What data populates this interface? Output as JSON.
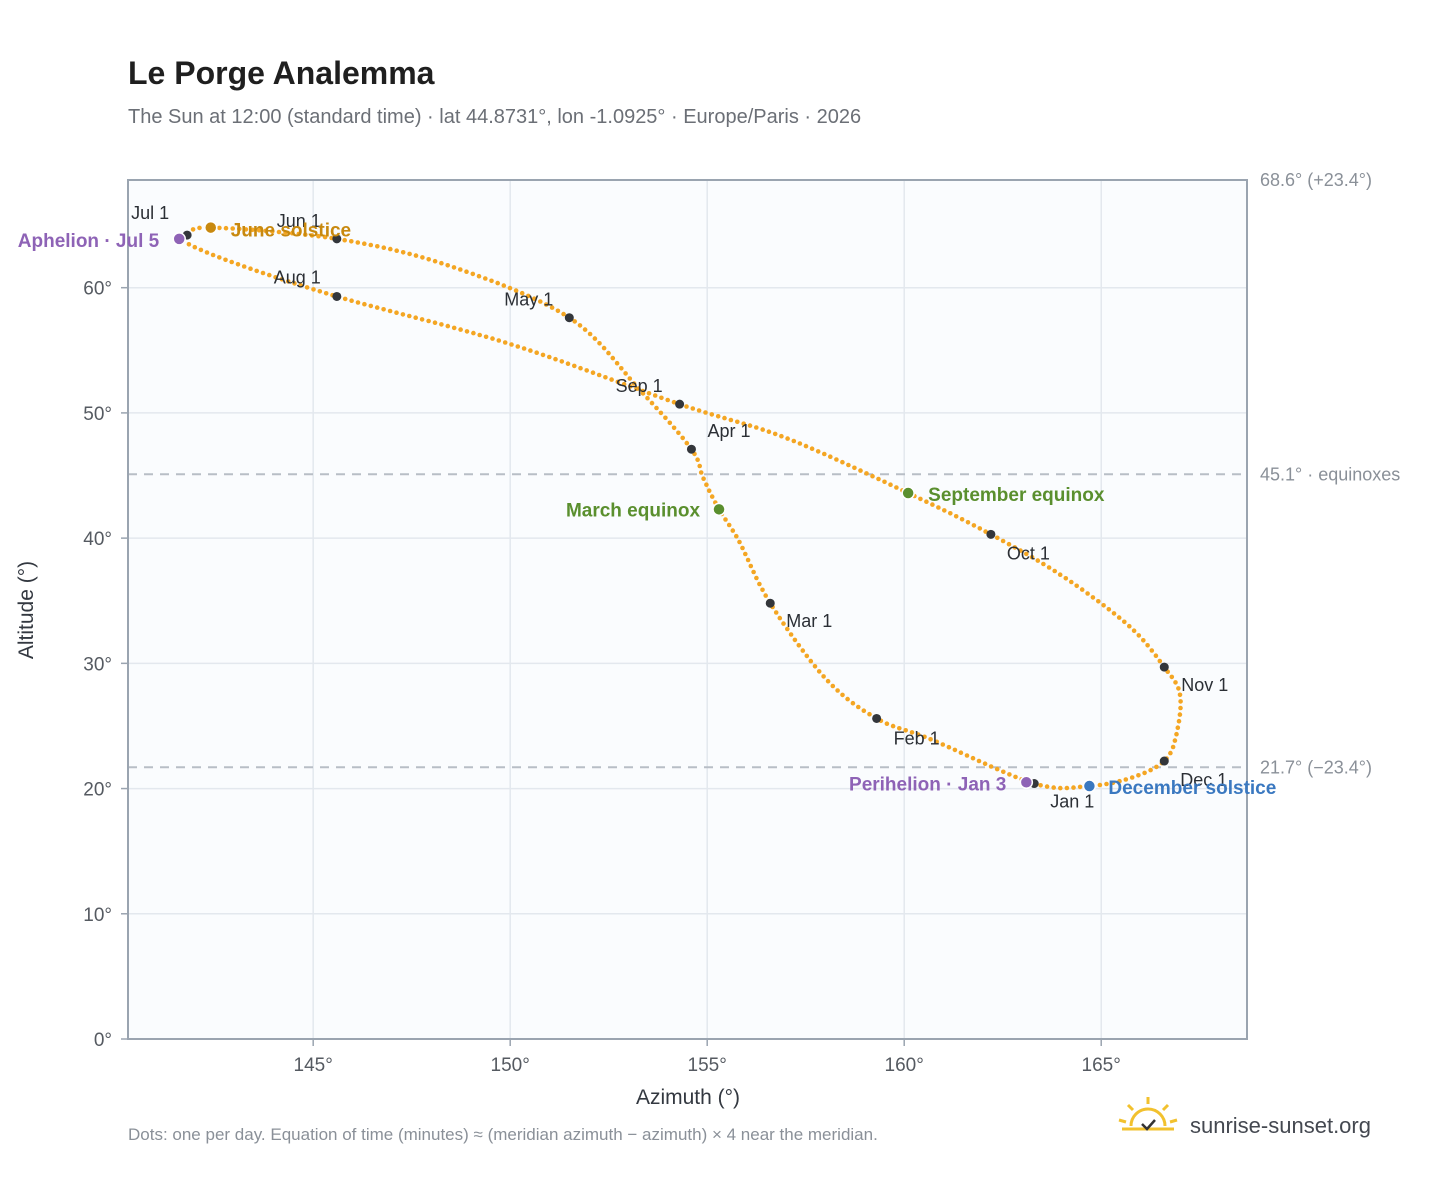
{
  "header": {
    "title": "Le Porge Analemma",
    "subtitle": "The Sun at 12:00 (standard time) · lat 44.8731°, lon -1.0925° · Europe/Paris · 2026"
  },
  "footer": {
    "note": "Dots: one per day. Equation of time (minutes) ≈ (meridian azimuth − azimuth) × 4 near the meridian.",
    "brand": "sunrise-sunset.org",
    "brand_icon": "sunrise-logo-icon"
  },
  "colors": {
    "curve": "#f4a623",
    "month_marker": "#33363b",
    "solstice_june": "#c8890f",
    "solstice_december": "#3a78c0",
    "equinox": "#5a8f2e",
    "apsis": "#8e63b6",
    "reference_line": "#b8bec6",
    "plot_background": "#fafcfe",
    "grid": "#e3e8ee",
    "frame": "#9aa4b0"
  },
  "chart_data": {
    "type": "scatter",
    "title": "Le Porge Analemma",
    "subtitle": "The Sun at 12:00 (standard time) · lat 44.8731°, lon -1.0925° · Europe/Paris · 2026",
    "xlabel": "Azimuth (°)",
    "ylabel": "Altitude (°)",
    "xlim": [
      140.3,
      168.7
    ],
    "ylim": [
      0,
      68.6
    ],
    "xticks": [
      145,
      150,
      155,
      160,
      165
    ],
    "xtick_labels": [
      "145°",
      "150°",
      "155°",
      "160°",
      "165°"
    ],
    "yticks": [
      0,
      10,
      20,
      30,
      40,
      50,
      60
    ],
    "ytick_labels": [
      "0°",
      "10°",
      "20°",
      "30°",
      "40°",
      "50°",
      "60°"
    ],
    "grid": true,
    "series": [
      {
        "role": "daily-path",
        "points": [
          [
            163.3,
            20.4
          ],
          [
            160.7,
            23.9
          ],
          [
            159.3,
            25.6
          ],
          [
            158.0,
            28.8
          ],
          [
            156.6,
            34.8
          ],
          [
            155.8,
            39.8
          ],
          [
            155.3,
            42.3
          ],
          [
            154.9,
            44.8
          ],
          [
            154.6,
            47.1
          ],
          [
            153.3,
            51.8
          ],
          [
            151.5,
            57.6
          ],
          [
            148.5,
            61.7
          ],
          [
            145.6,
            63.9
          ],
          [
            142.4,
            64.8
          ],
          [
            141.8,
            64.2
          ],
          [
            141.6,
            63.9
          ],
          [
            142.8,
            62.2
          ],
          [
            145.6,
            59.3
          ],
          [
            150.0,
            55.5
          ],
          [
            154.3,
            50.7
          ],
          [
            157.0,
            48.0
          ],
          [
            160.1,
            43.6
          ],
          [
            162.2,
            40.3
          ],
          [
            164.0,
            37.0
          ],
          [
            165.7,
            33.0
          ],
          [
            166.6,
            29.7
          ],
          [
            167.0,
            27.5
          ],
          [
            166.9,
            24.2
          ],
          [
            166.6,
            22.2
          ],
          [
            165.8,
            20.9
          ],
          [
            164.7,
            20.2
          ],
          [
            163.3,
            20.4
          ]
        ]
      }
    ],
    "reference_lines": [
      {
        "altitude": 68.6,
        "label": "68.6° (+23.4°)"
      },
      {
        "altitude": 45.1,
        "label": "45.1° · equinoxes"
      },
      {
        "altitude": 21.7,
        "label": "21.7° (−23.4°)"
      }
    ],
    "month_markers": [
      {
        "label": "Jan 1",
        "azimuth": 163.3,
        "altitude": 20.4
      },
      {
        "label": "Feb 1",
        "azimuth": 159.3,
        "altitude": 25.6
      },
      {
        "label": "Mar 1",
        "azimuth": 156.6,
        "altitude": 34.8
      },
      {
        "label": "Apr 1",
        "azimuth": 154.6,
        "altitude": 47.1
      },
      {
        "label": "May 1",
        "azimuth": 151.5,
        "altitude": 57.6
      },
      {
        "label": "Jun 1",
        "azimuth": 145.6,
        "altitude": 63.9
      },
      {
        "label": "Jul 1",
        "azimuth": 141.8,
        "altitude": 64.2
      },
      {
        "label": "Aug 1",
        "azimuth": 145.6,
        "altitude": 59.3
      },
      {
        "label": "Sep 1",
        "azimuth": 154.3,
        "altitude": 50.7
      },
      {
        "label": "Oct 1",
        "azimuth": 162.2,
        "altitude": 40.3
      },
      {
        "label": "Nov 1",
        "azimuth": 166.6,
        "altitude": 29.7
      },
      {
        "label": "Dec 1",
        "azimuth": 166.6,
        "altitude": 22.2
      }
    ],
    "events": [
      {
        "label": "June solstice",
        "azimuth": 142.4,
        "altitude": 64.8,
        "kind": "solstice_june"
      },
      {
        "label": "December solstice",
        "azimuth": 164.7,
        "altitude": 20.2,
        "kind": "solstice_december"
      },
      {
        "label": "March equinox",
        "azimuth": 155.3,
        "altitude": 42.3,
        "kind": "equinox"
      },
      {
        "label": "September equinox",
        "azimuth": 160.1,
        "altitude": 43.6,
        "kind": "equinox"
      },
      {
        "label": "Aphelion · Jul 5",
        "azimuth": 141.6,
        "altitude": 63.9,
        "kind": "apsis"
      },
      {
        "label": "Perihelion · Jan 3",
        "azimuth": 163.1,
        "altitude": 20.5,
        "kind": "apsis"
      }
    ]
  }
}
